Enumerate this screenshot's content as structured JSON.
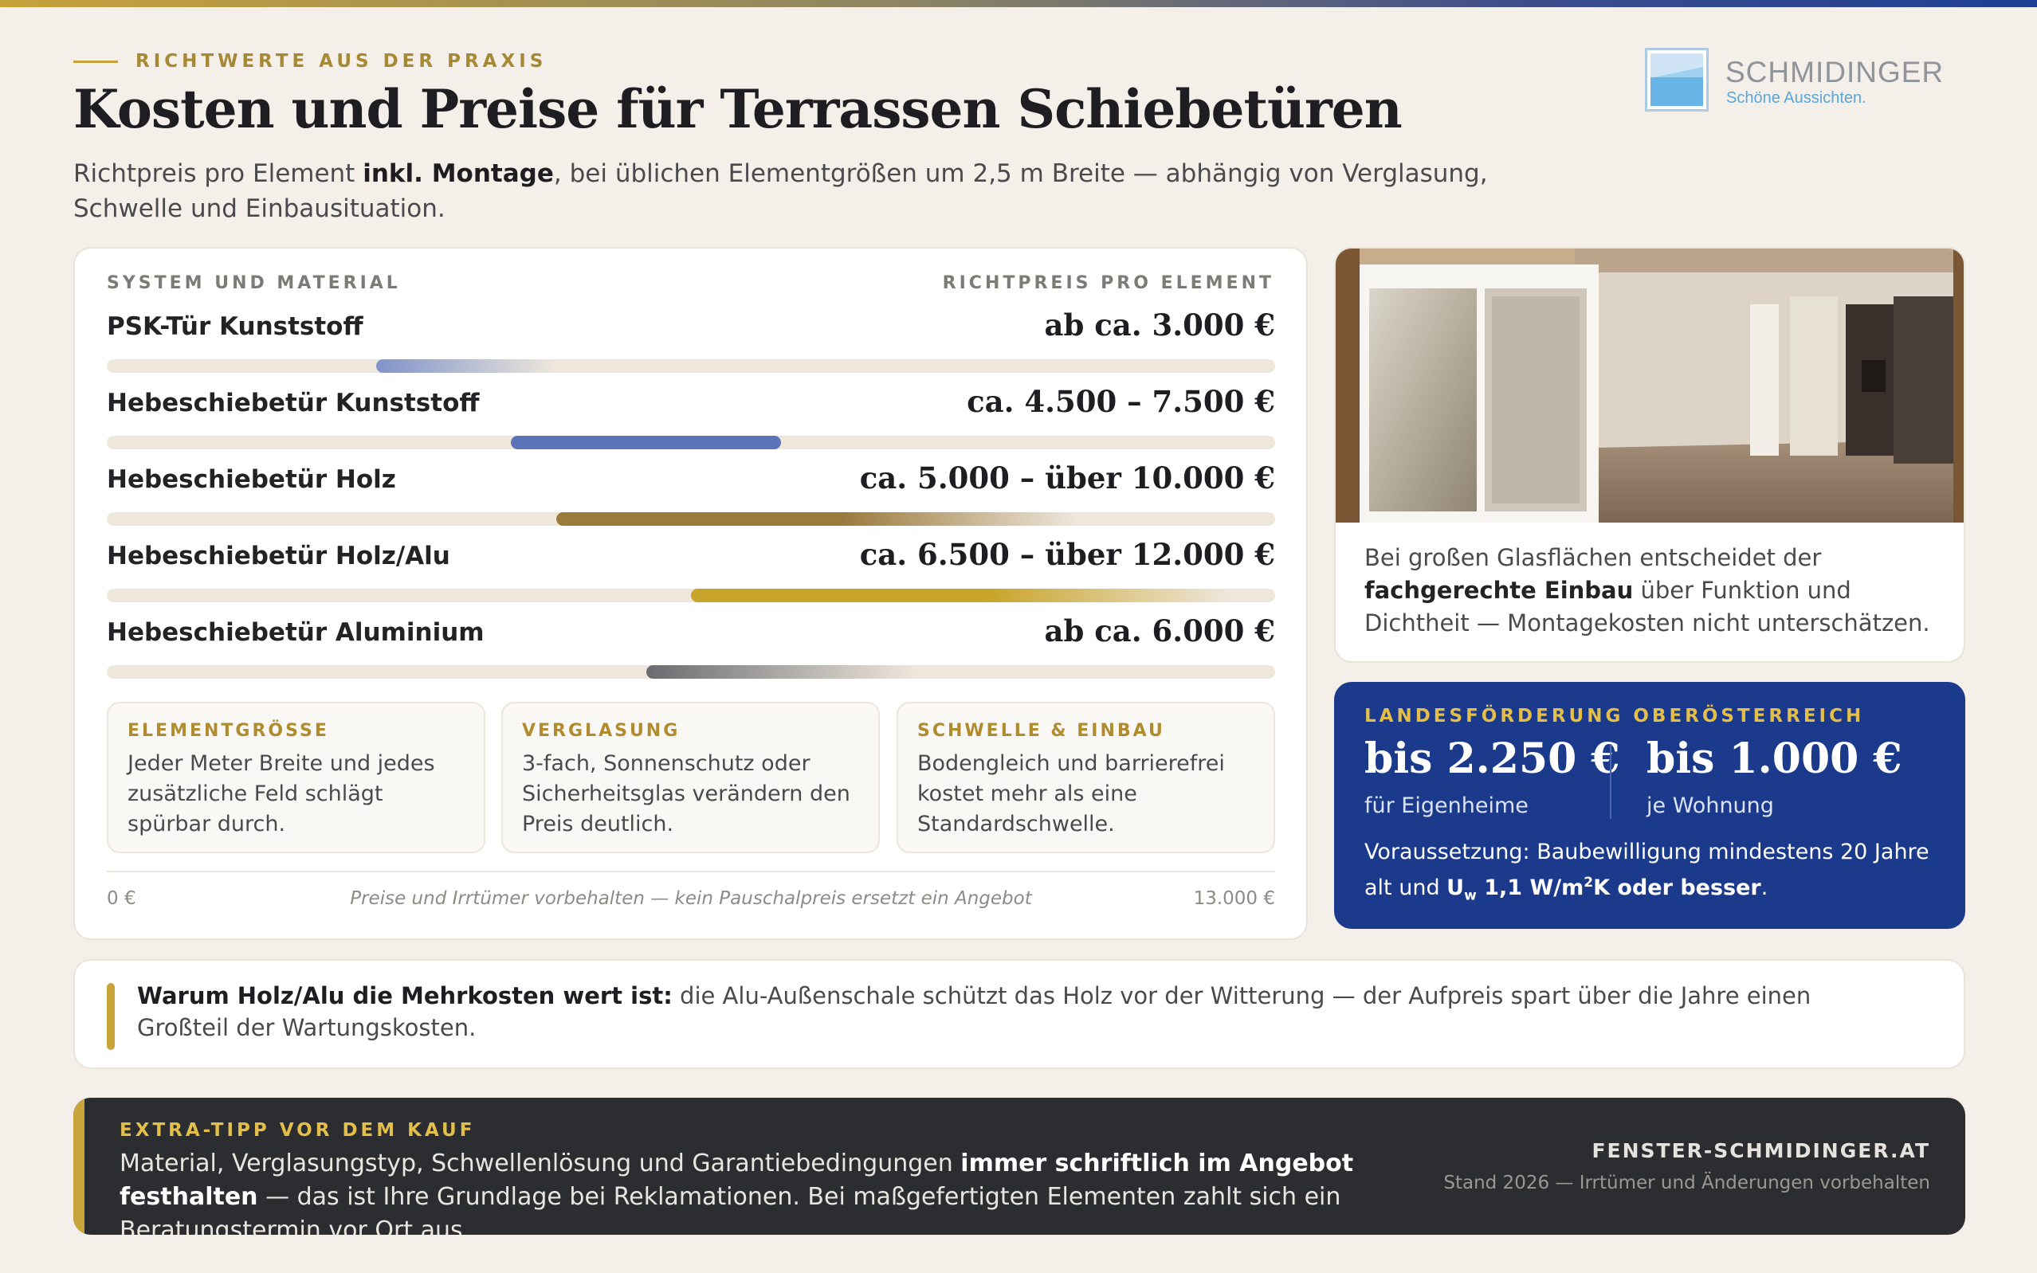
{
  "header": {
    "eyebrow": "RICHTWERTE AUS DER PRAXIS",
    "title": "Kosten und Preise für Terrassen Schiebetüren",
    "subtitle_pre": "Richtpreis pro Element ",
    "subtitle_bold": "inkl. Montage",
    "subtitle_post": ", bei üblichen Elementgrößen um 2,5 m Breite — abhängig von Verglasung, Schwelle und Einbausituation."
  },
  "logo": {
    "name": "SCHMIDINGER",
    "tagline": "Schöne Aussichten."
  },
  "price_table": {
    "col_system": "SYSTEM UND MATERIAL",
    "col_price": "RICHTPREIS PRO ELEMENT",
    "rows": [
      {
        "label": "PSK-Tür Kunststoff",
        "price": "ab ca. 3.000 €",
        "range_from": 3000,
        "range_to": 5000,
        "color": "#7f93c9"
      },
      {
        "label": "Hebeschiebetür Kunststoff",
        "price": "ca. 4.500 – 7.500 €",
        "range_from": 4500,
        "range_to": 7500,
        "color": "#5b73b8"
      },
      {
        "label": "Hebeschiebetür Holz",
        "price": "ca. 5.000 – über 10.000 €",
        "range_from": 5000,
        "range_to": 10800,
        "color": "#9c7a3c"
      },
      {
        "label": "Hebeschiebetür Holz/Alu",
        "price": "ca. 6.500 – über 12.000 €",
        "range_from": 6500,
        "range_to": 12500,
        "color": "#c9a42a"
      },
      {
        "label": "Hebeschiebetür Aluminium",
        "price": "ab ca. 6.000 €",
        "range_from": 6000,
        "range_to": 9000,
        "color": "#6a6b70"
      }
    ],
    "scale_min": "0 €",
    "scale_max": "13.000 €",
    "scale_max_value": 13000,
    "note": "Preise und Irrtümer vorbehalten — kein Pauschalpreis ersetzt ein Angebot"
  },
  "info_boxes": [
    {
      "title": "ELEMENTGRÖSSE",
      "text": "Jeder Meter Breite und jedes zusätzliche Feld schlägt spürbar durch."
    },
    {
      "title": "VERGLASUNG",
      "text": "3-fach, Sonnenschutz oder Sicherheitsglas verändern den Preis deutlich."
    },
    {
      "title": "SCHWELLE & EINBAU",
      "text": "Bodengleich und barrierefrei kostet mehr als eine Standardschwelle."
    }
  ],
  "photo": {
    "caption_pre": "Bei großen Glasflächen entscheidet der ",
    "caption_bold": "fachgerechte Einbau",
    "caption_post": " über Funktion und Dichtheit — Montagekosten nicht unterschätzen."
  },
  "funding": {
    "eyebrow": "LANDESFÖRDERUNG OBERÖSTERREICH",
    "amount_1": "bis 2.250 €",
    "label_1": "für Eigenheime",
    "amount_2": "bis 1.000 €",
    "label_2": "je Wohnung",
    "req_pre": "Voraussetzung: Baubewilligung mindestens 20 Jahre alt und ",
    "req_u": "U",
    "req_sub": "w",
    "req_val": " 1,1 W/m",
    "req_sup": "2",
    "req_post": "K oder besser",
    "req_end": "."
  },
  "quote": {
    "bold": "Warum Holz/Alu die Mehrkosten wert ist:",
    "text": " die Alu-Außenschale schützt das Holz vor der Witterung — der Aufpreis spart über die Jahre einen Großteil der Wartungskosten."
  },
  "tip": {
    "eyebrow": "EXTRA-TIPP VOR DEM KAUF",
    "pre": "Material, Verglasungstyp, Schwellenlösung und Garantiebedingungen ",
    "bold": "immer schriftlich im Angebot festhalten",
    "post": " — das ist Ihre Grundlage bei Reklamationen. Bei maßgefertigten Elementen zahlt sich ein Beratungstermin vor Ort aus.",
    "site": "FENSTER-SCHMIDINGER.AT",
    "stand": "Stand 2026 — Irrtümer und Änderungen vorbehalten"
  }
}
